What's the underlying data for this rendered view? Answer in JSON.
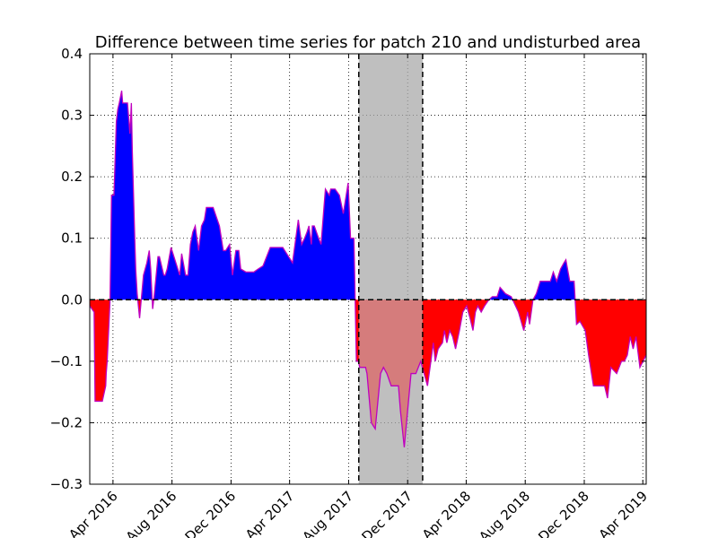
{
  "chart_data": {
    "type": "area",
    "title": "Difference between time series for patch 210 and undisturbed area",
    "xlabel": "",
    "ylabel": "",
    "grid": true,
    "xlim": [
      "2016-02-13",
      "2019-04-08"
    ],
    "ylim": [
      -0.3,
      0.4
    ],
    "yticks": [
      -0.3,
      -0.2,
      -0.1,
      0.0,
      0.1,
      0.2,
      0.3,
      0.4
    ],
    "ytick_labels": [
      "−0.3",
      "−0.2",
      "−0.1",
      "0.0",
      "0.1",
      "0.2",
      "0.3",
      "0.4"
    ],
    "xticks": [
      "2016-04-01",
      "2016-08-01",
      "2016-12-01",
      "2017-04-01",
      "2017-08-01",
      "2017-12-01",
      "2018-04-01",
      "2018-08-01",
      "2018-12-01",
      "2019-04-01"
    ],
    "xtick_labels": [
      "Apr 2016",
      "Aug 2016",
      "Dec 2016",
      "Apr 2017",
      "Aug 2017",
      "Dec 2017",
      "Apr 2018",
      "Aug 2018",
      "Dec 2018",
      "Apr 2019"
    ],
    "shaded_region": {
      "start": "2017-08-22",
      "end": "2018-01-01",
      "color": "#bfbfbf"
    },
    "baseline": 0.0,
    "colors": {
      "positive": "#0000ff",
      "negative": "#ff0000",
      "line": "#bf00bf",
      "shade": "#bfbfbf"
    },
    "series": [
      {
        "x": [
          "2016-02-13",
          "2016-02-22",
          "2016-02-24",
          "2016-03-10",
          "2016-03-17",
          "2016-03-18",
          "2016-03-20",
          "2016-03-26",
          "2016-03-29",
          "2016-04-03",
          "2016-04-08",
          "2016-04-11",
          "2016-04-14",
          "2016-04-19",
          "2016-04-21",
          "2016-05-01",
          "2016-05-03",
          "2016-05-06",
          "2016-05-09",
          "2016-05-11",
          "2016-05-16",
          "2016-05-18",
          "2016-05-21",
          "2016-05-26",
          "2016-06-03",
          "2016-06-10",
          "2016-06-15",
          "2016-06-18",
          "2016-06-22",
          "2016-06-25",
          "2016-07-03",
          "2016-07-06",
          "2016-07-15",
          "2016-07-18",
          "2016-07-22",
          "2016-07-30",
          "2016-08-09",
          "2016-08-17",
          "2016-08-21",
          "2016-08-29",
          "2016-09-03",
          "2016-09-08",
          "2016-09-13",
          "2016-09-18",
          "2016-09-25",
          "2016-10-01",
          "2016-10-07",
          "2016-10-11",
          "2016-10-18",
          "2016-10-25",
          "2016-11-07",
          "2016-11-15",
          "2016-11-20",
          "2016-11-28",
          "2016-12-04",
          "2016-12-11",
          "2016-12-17",
          "2016-12-21",
          "2017-01-01",
          "2017-01-09",
          "2017-01-17",
          "2017-01-26",
          "2017-02-05",
          "2017-02-20",
          "2017-03-08",
          "2017-03-18",
          "2017-03-22",
          "2017-04-07",
          "2017-04-19",
          "2017-04-26",
          "2017-05-02",
          "2017-05-07",
          "2017-05-11",
          "2017-05-16",
          "2017-05-18",
          "2017-05-22",
          "2017-05-31",
          "2017-06-05",
          "2017-06-14",
          "2017-06-22",
          "2017-06-25",
          "2017-07-04",
          "2017-07-13",
          "2017-07-21",
          "2017-07-31",
          "2017-08-05",
          "2017-08-12",
          "2017-08-17",
          "2017-08-21",
          "2017-08-24",
          "2017-08-30",
          "2017-09-01",
          "2017-09-05",
          "2017-09-08",
          "2017-09-17",
          "2017-09-25",
          "2017-10-06",
          "2017-10-12",
          "2017-10-19",
          "2017-10-28",
          "2017-11-02",
          "2017-11-05",
          "2017-11-12",
          "2017-11-16",
          "2017-11-24",
          "2017-12-08",
          "2017-12-18",
          "2017-12-28",
          "2018-01-04",
          "2018-01-11",
          "2018-01-18",
          "2018-01-23",
          "2018-01-27",
          "2018-02-02",
          "2018-02-11",
          "2018-02-15",
          "2018-02-20",
          "2018-02-26",
          "2018-03-04",
          "2018-03-10",
          "2018-03-18",
          "2018-03-25",
          "2018-04-02",
          "2018-04-09",
          "2018-04-15",
          "2018-04-20",
          "2018-04-25",
          "2018-05-02",
          "2018-05-09",
          "2018-05-18",
          "2018-05-25",
          "2018-06-04",
          "2018-06-10",
          "2018-06-21",
          "2018-07-03",
          "2018-07-18",
          "2018-07-29",
          "2018-08-06",
          "2018-08-10",
          "2018-08-17",
          "2018-08-24",
          "2018-09-01",
          "2018-09-08",
          "2018-09-15",
          "2018-09-22",
          "2018-09-28",
          "2018-10-05",
          "2018-10-13",
          "2018-10-20",
          "2018-10-24",
          "2018-11-01",
          "2018-11-10",
          "2018-11-15",
          "2018-11-22",
          "2018-12-03",
          "2018-12-10",
          "2018-12-20",
          "2019-01-05",
          "2019-01-12",
          "2019-01-18",
          "2019-01-25",
          "2019-02-06",
          "2019-02-16",
          "2019-02-22",
          "2019-02-28",
          "2019-03-06",
          "2019-03-12",
          "2019-03-18",
          "2019-03-26",
          "2019-04-08"
        ],
        "y": [
          -0.01,
          -0.02,
          -0.165,
          -0.165,
          -0.14,
          -0.12,
          -0.1,
          0.0,
          0.17,
          0.17,
          0.29,
          0.31,
          0.32,
          0.34,
          0.32,
          0.32,
          0.3,
          0.27,
          0.32,
          0.24,
          0.1,
          0.05,
          0.01,
          -0.03,
          0.04,
          0.06,
          0.08,
          0.05,
          -0.015,
          0.005,
          0.07,
          0.07,
          0.04,
          0.04,
          0.05,
          0.085,
          0.06,
          0.04,
          0.075,
          0.04,
          0.04,
          0.09,
          0.11,
          0.12,
          0.08,
          0.12,
          0.13,
          0.15,
          0.15,
          0.15,
          0.12,
          0.08,
          0.08,
          0.09,
          0.04,
          0.08,
          0.08,
          0.05,
          0.045,
          0.045,
          0.045,
          0.05,
          0.055,
          0.085,
          0.085,
          0.085,
          0.08,
          0.06,
          0.13,
          0.09,
          0.1,
          0.11,
          0.12,
          0.09,
          0.12,
          0.12,
          0.1,
          0.09,
          0.18,
          0.17,
          0.18,
          0.18,
          0.17,
          0.14,
          0.19,
          0.1,
          0.1,
          -0.1,
          -0.1,
          -0.11,
          -0.11,
          -0.11,
          -0.11,
          -0.12,
          -0.2,
          -0.21,
          -0.12,
          -0.11,
          -0.12,
          -0.14,
          -0.14,
          -0.14,
          -0.14,
          -0.18,
          -0.24,
          -0.12,
          -0.12,
          -0.1,
          -0.12,
          -0.14,
          -0.1,
          -0.07,
          -0.1,
          -0.08,
          -0.07,
          -0.05,
          -0.07,
          -0.05,
          -0.06,
          -0.08,
          -0.05,
          -0.02,
          -0.01,
          -0.03,
          -0.05,
          -0.02,
          -0.01,
          -0.02,
          -0.01,
          0.0,
          0.005,
          0.005,
          0.02,
          0.01,
          0.005,
          -0.02,
          -0.05,
          -0.02,
          -0.04,
          0.0,
          0.01,
          0.03,
          0.03,
          0.03,
          0.03,
          0.045,
          0.03,
          0.05,
          0.06,
          0.065,
          0.03,
          0.03,
          -0.04,
          -0.035,
          -0.05,
          -0.09,
          -0.14,
          -0.14,
          -0.14,
          -0.16,
          -0.11,
          -0.12,
          -0.1,
          -0.1,
          -0.09,
          -0.06,
          -0.08,
          -0.06,
          -0.11,
          -0.09
        ]
      }
    ]
  }
}
